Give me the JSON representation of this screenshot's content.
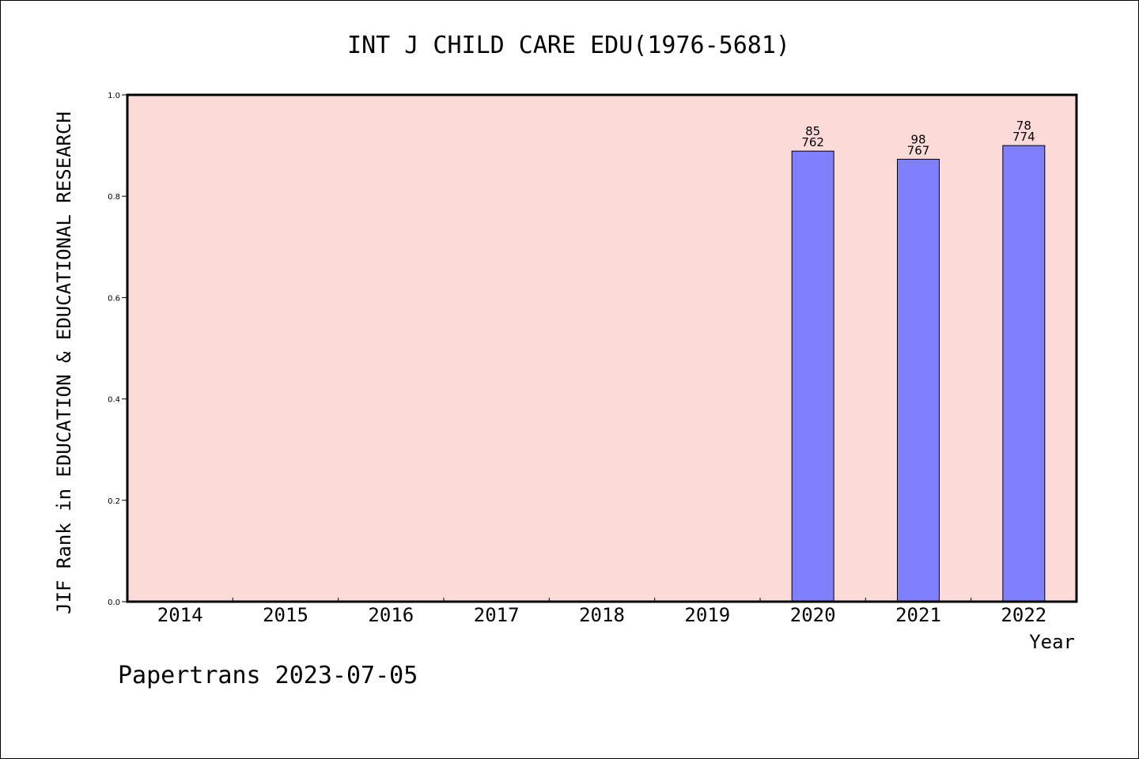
{
  "chart_data": {
    "type": "bar",
    "title": "INT J CHILD CARE EDU(1976-5681)",
    "xlabel": "Year",
    "ylabel": "JIF Rank in EDUCATION & EDUCATIONAL RESEARCH",
    "ylim": [
      0,
      1.0
    ],
    "yticks": [
      "0.0",
      "0.2",
      "0.4",
      "0.6",
      "0.8",
      "1.0"
    ],
    "categories": [
      "2014",
      "2015",
      "2016",
      "2017",
      "2018",
      "2019",
      "2020",
      "2021",
      "2022"
    ],
    "values": [
      null,
      null,
      null,
      null,
      null,
      null,
      0.889,
      0.873,
      0.9
    ],
    "rank": [
      null,
      null,
      null,
      null,
      null,
      null,
      "85",
      "98",
      "78"
    ],
    "total": [
      null,
      null,
      null,
      null,
      null,
      null,
      "762",
      "767",
      "774"
    ],
    "grid": false,
    "legend": "none",
    "colors": {
      "plot_background": "#fddbd8",
      "bar_fill": "#8080ff",
      "bar_stroke": "#000000",
      "axis": "#000000"
    }
  },
  "footer": {
    "text": "Papertrans 2023-07-05"
  }
}
